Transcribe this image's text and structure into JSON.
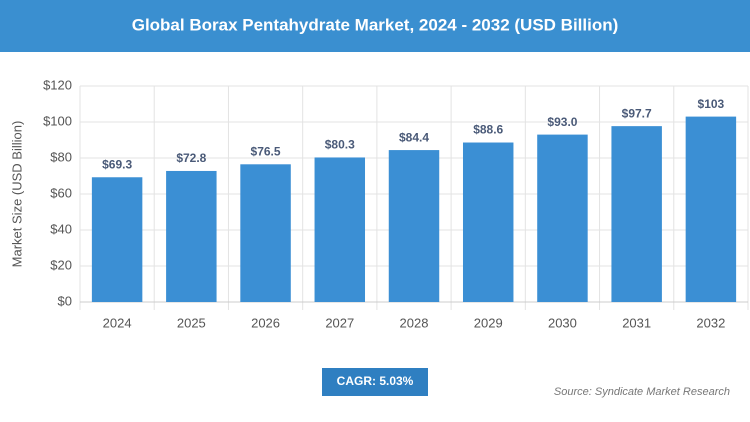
{
  "chart_data": {
    "type": "bar",
    "title": "Global Borax Pentahydrate Market, 2024 - 2032 (USD Billion)",
    "ylabel": "Market Size (USD Billion)",
    "categories": [
      "2024",
      "2025",
      "2026",
      "2027",
      "2028",
      "2029",
      "2030",
      "2031",
      "2032"
    ],
    "values": [
      69.3,
      72.8,
      76.5,
      80.3,
      84.4,
      88.6,
      93.0,
      97.7,
      103
    ],
    "value_labels": [
      "$69.3",
      "$72.8",
      "$76.5",
      "$80.3",
      "$84.4",
      "$88.6",
      "$93.0",
      "$97.7",
      "$103"
    ],
    "color": "#3b8fd4",
    "ylim": [
      0,
      120
    ],
    "yticks": [
      {
        "value": 0,
        "label": "$0"
      },
      {
        "value": 20,
        "label": "$20"
      },
      {
        "value": 40,
        "label": "$40"
      },
      {
        "value": 60,
        "label": "$60"
      },
      {
        "value": 80,
        "label": "$80"
      },
      {
        "value": 100,
        "label": "$100"
      },
      {
        "value": 120,
        "label": "$120"
      }
    ],
    "grid": true,
    "cagr_label": "CAGR: 5.03%",
    "source": "Source: Syndicate Market Research"
  }
}
